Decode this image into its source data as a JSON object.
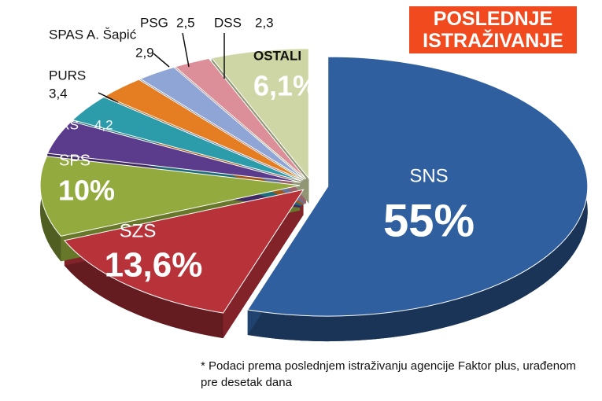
{
  "chart_data": {
    "type": "pie",
    "title": "POSLEDNJE ISTRAŽIVANJE",
    "categories": [
      "SNS",
      "SZS",
      "SPS",
      "SRS",
      "PURS",
      "SPAS A. Šapić",
      "PSG",
      "DSS",
      "OSTALI"
    ],
    "values": [
      55,
      13.6,
      10,
      4.2,
      3.4,
      2.9,
      2.5,
      2.3,
      6.1
    ],
    "value_labels": [
      "55%",
      "13,6%",
      "10%",
      "4,2",
      "3,4",
      "2,9",
      "2,5",
      "2,3",
      "6,1%"
    ],
    "colors": [
      "#2f5f9e",
      "#b8323a",
      "#93ab3e",
      "#5b3c8c",
      "#2c9cab",
      "#e57d22",
      "#8fa5d6",
      "#dc8f98",
      "#cfd6a6"
    ],
    "note": "* Podaci prema poslednjem istraživanju agencije Faktor plus, urađenom pre desetak dana"
  }
}
